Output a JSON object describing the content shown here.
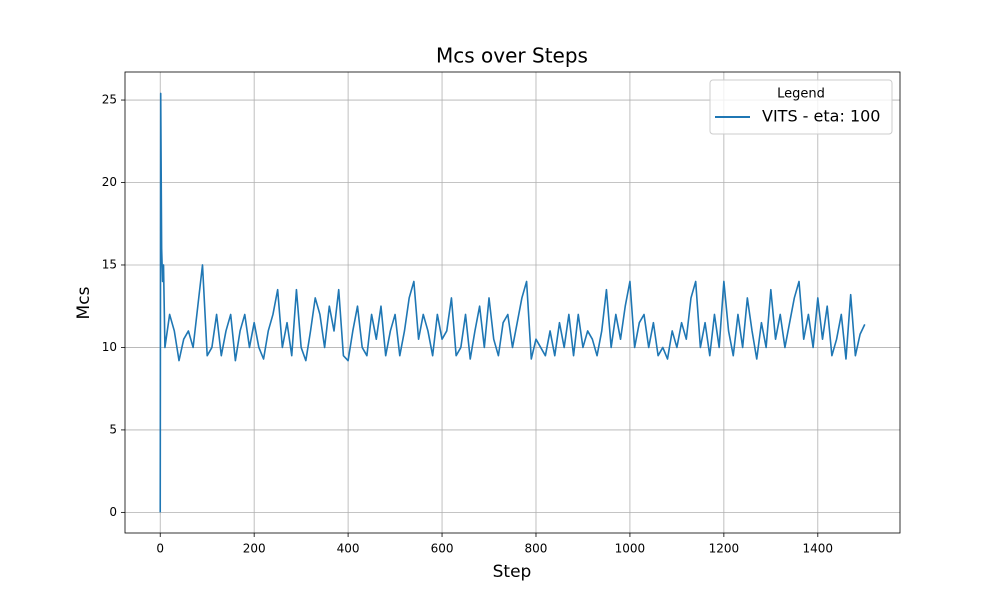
{
  "chart_data": {
    "type": "line",
    "title": "Mcs over Steps",
    "x_label": "Step",
    "y_label": "Mcs",
    "legend_title": "Legend",
    "legend_position": "upper right",
    "grid": true,
    "xlim": [
      -75,
      1575
    ],
    "ylim": [
      -1.25,
      26.7
    ],
    "xticks": [
      0,
      200,
      400,
      600,
      800,
      1000,
      1200,
      1400
    ],
    "yticks": [
      0,
      5,
      10,
      15,
      20,
      25
    ],
    "x": [
      0,
      1,
      3,
      5,
      7,
      10,
      20,
      30,
      40,
      50,
      60,
      70,
      80,
      90,
      100,
      110,
      120,
      130,
      140,
      150,
      160,
      170,
      180,
      190,
      200,
      210,
      220,
      230,
      240,
      250,
      260,
      270,
      280,
      290,
      300,
      310,
      320,
      330,
      340,
      350,
      360,
      370,
      380,
      390,
      400,
      410,
      420,
      430,
      440,
      450,
      460,
      470,
      480,
      490,
      500,
      510,
      520,
      530,
      540,
      550,
      560,
      570,
      580,
      590,
      600,
      610,
      620,
      630,
      640,
      650,
      660,
      670,
      680,
      690,
      700,
      710,
      720,
      730,
      740,
      750,
      760,
      770,
      780,
      790,
      800,
      810,
      820,
      830,
      840,
      850,
      860,
      870,
      880,
      890,
      900,
      910,
      920,
      930,
      940,
      950,
      960,
      970,
      980,
      990,
      1000,
      1010,
      1020,
      1030,
      1040,
      1050,
      1060,
      1070,
      1080,
      1090,
      1100,
      1110,
      1120,
      1130,
      1140,
      1150,
      1160,
      1170,
      1180,
      1190,
      1200,
      1210,
      1220,
      1230,
      1240,
      1250,
      1260,
      1270,
      1280,
      1290,
      1300,
      1310,
      1320,
      1330,
      1340,
      1350,
      1360,
      1370,
      1380,
      1390,
      1400,
      1410,
      1420,
      1430,
      1440,
      1450,
      1460,
      1470,
      1480,
      1490,
      1500
    ],
    "series": [
      {
        "name": "VITS - eta: 100",
        "color": "#1f77b4",
        "values": [
          0,
          25.4,
          16,
          14,
          15,
          10,
          12,
          11,
          9.2,
          10.5,
          11,
          10,
          12.5,
          15,
          9.5,
          10,
          12,
          9.5,
          11,
          12,
          9.2,
          11,
          12,
          10,
          11.5,
          10,
          9.3,
          11,
          12,
          13.5,
          10,
          11.5,
          9.5,
          13.5,
          10,
          9.2,
          11,
          13,
          12,
          10,
          12.5,
          11,
          13.5,
          9.5,
          9.2,
          11,
          12.5,
          10,
          9.5,
          12,
          10.5,
          12.5,
          9.5,
          11,
          12,
          9.5,
          11,
          13,
          14,
          10.5,
          12,
          11,
          9.5,
          12,
          10.5,
          11,
          13,
          9.5,
          10,
          12,
          9.3,
          11,
          12.5,
          10,
          13,
          10.5,
          9.5,
          11.5,
          12,
          10,
          11.5,
          13,
          14,
          9.3,
          10.5,
          10,
          9.5,
          11,
          9.5,
          11.5,
          10,
          12,
          9.5,
          12,
          10,
          11,
          10.5,
          9.5,
          11,
          13.5,
          10,
          12,
          10.5,
          12.5,
          14,
          10,
          11.5,
          12,
          10,
          11.5,
          9.5,
          10,
          9.3,
          11,
          10,
          11.5,
          10.5,
          13,
          14,
          10,
          11.5,
          9.5,
          12,
          10,
          14,
          11,
          9.5,
          12,
          10,
          13,
          11,
          9.3,
          11.5,
          10,
          13.5,
          10.5,
          12,
          10,
          11.5,
          13,
          14,
          10.5,
          12,
          10,
          13,
          10.5,
          12.5,
          9.5,
          10.5,
          12,
          9.3,
          13.2,
          9.5,
          10.8,
          11.4
        ]
      }
    ]
  }
}
